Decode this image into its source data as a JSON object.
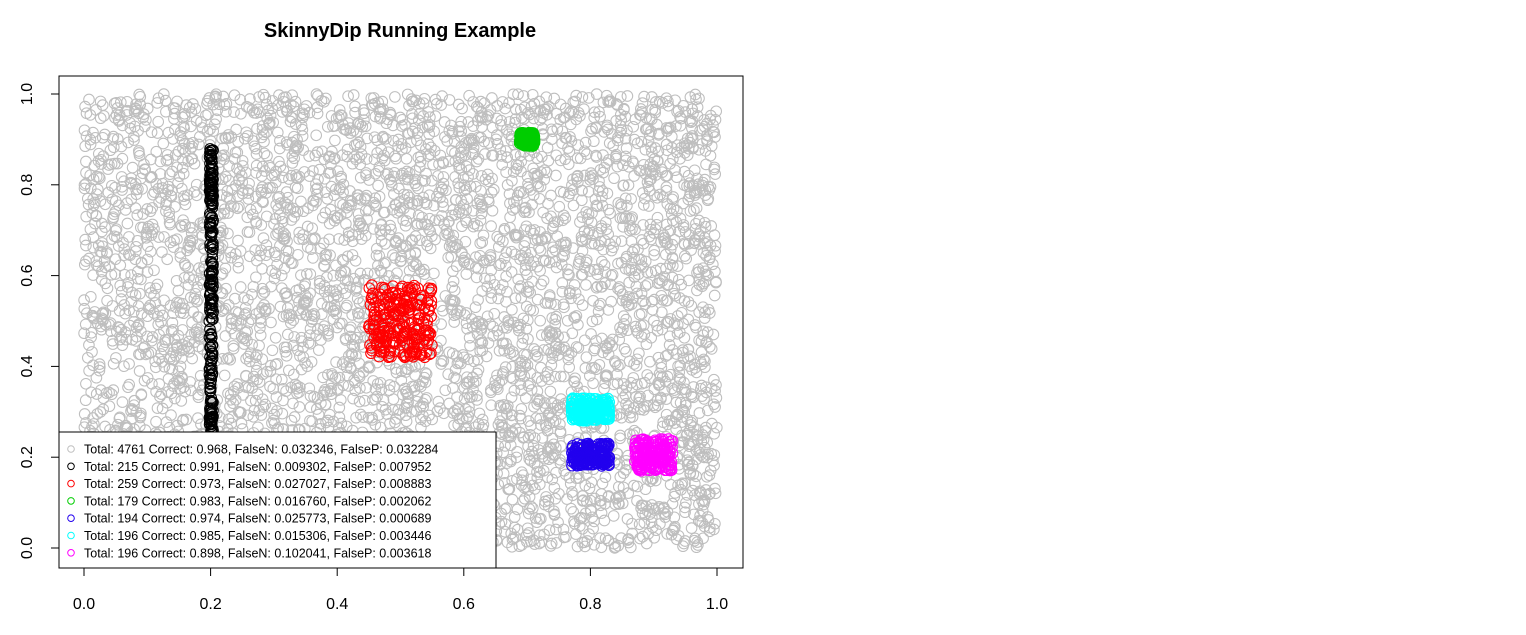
{
  "chart_data": {
    "type": "scatter",
    "title": "SkinnyDip Running Example",
    "xlabel": "",
    "ylabel": "",
    "xlim": [
      0.0,
      1.0
    ],
    "ylim": [
      0.0,
      1.0
    ],
    "x_ticks": [
      "0.0",
      "0.2",
      "0.4",
      "0.6",
      "0.8",
      "1.0"
    ],
    "y_ticks": [
      "0.0",
      "0.2",
      "0.4",
      "0.6",
      "0.8",
      "1.0"
    ],
    "grid": false,
    "legend_position": "bottom-left",
    "marker": "open-circle",
    "series": [
      {
        "color": "#bebebe",
        "count": 4761,
        "distribution": "uniform",
        "x_range": [
          0.0,
          1.0
        ],
        "y_range": [
          0.0,
          1.0
        ],
        "legend": "Total: 4761 Correct: 0.968, FalseN: 0.032346, FalseP: 0.032284"
      },
      {
        "color": "#000000",
        "count": 215,
        "distribution": "uniform",
        "x_range": [
          0.198,
          0.204
        ],
        "y_range": [
          0.25,
          0.88
        ],
        "legend": "Total: 215 Correct: 0.991, FalseN: 0.009302, FalseP: 0.007952"
      },
      {
        "color": "#ff0000",
        "count": 259,
        "distribution": "uniform",
        "x_range": [
          0.45,
          0.55
        ],
        "y_range": [
          0.42,
          0.58
        ],
        "legend": "Total: 259 Correct: 0.973, FalseN: 0.027027, FalseP: 0.008883"
      },
      {
        "color": "#00cd00",
        "count": 179,
        "distribution": "uniform",
        "x_range": [
          0.688,
          0.712
        ],
        "y_range": [
          0.885,
          0.915
        ],
        "legend": "Total: 179 Correct: 0.983, FalseN: 0.016760, FalseP: 0.002062"
      },
      {
        "color": "#2200ee",
        "count": 194,
        "distribution": "uniform",
        "x_range": [
          0.77,
          0.83
        ],
        "y_range": [
          0.18,
          0.23
        ],
        "legend": "Total: 194 Correct: 0.974, FalseN: 0.025773, FalseP: 0.000689"
      },
      {
        "color": "#00ffff",
        "count": 196,
        "distribution": "uniform",
        "x_range": [
          0.77,
          0.83
        ],
        "y_range": [
          0.28,
          0.33
        ],
        "legend": "Total: 196 Correct: 0.985, FalseN: 0.015306, FalseP: 0.003446"
      },
      {
        "color": "#ff00ff",
        "count": 196,
        "distribution": "uniform",
        "x_range": [
          0.87,
          0.93
        ],
        "y_range": [
          0.17,
          0.24
        ],
        "legend": "Total: 196 Correct: 0.898, FalseN: 0.102041, FalseP: 0.003618"
      }
    ]
  }
}
